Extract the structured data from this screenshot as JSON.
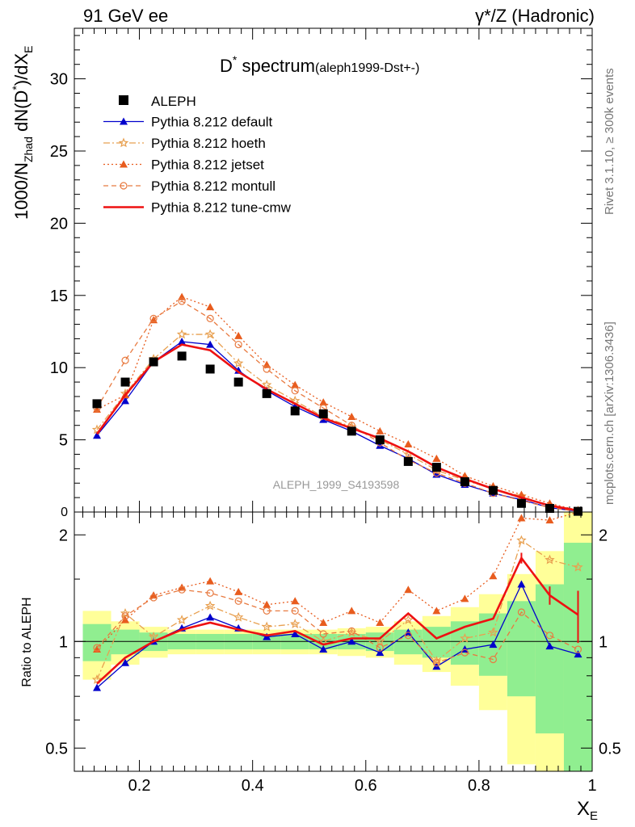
{
  "header": {
    "left": "91 GeV ee",
    "right": "γ*/Z (Hadronic)"
  },
  "side": {
    "rivet": "Rivet 3.1.10, ≥ 300k events",
    "mcplots": "mcplots.cern.ch [arXiv:1306.3436]"
  },
  "colors": {
    "data": "#000000",
    "default": "#0000cc",
    "hoeth": "#e8a050",
    "jetset": "#e85c1e",
    "montull": "#e87a40",
    "tunecmw": "#ee1111",
    "band_inner": "#90ee90",
    "band_outer": "#ffff99"
  },
  "chart_data": {
    "type": "line",
    "title_main": "D",
    "title_sup": "*",
    "title_word": " spectrum",
    "title_sub": "(aleph1999-Dst+-)",
    "analysis_label": "ALEPH_1999_S4193598",
    "xlabel_main": "X",
    "xlabel_sub": "E",
    "ylabel": {
      "a": "1000/N",
      "a_sub": "Zhad",
      "b": " dN(D",
      "b_sup": "*",
      "c": ")/dX",
      "c_sub": "E"
    },
    "ratio_ylabel": "Ratio to ALEPH",
    "xlim": [
      0.085,
      1.0
    ],
    "ylim": [
      0,
      33.5
    ],
    "ratio_ylim": [
      0.43,
      2.32
    ],
    "x_ticks": [
      "0.2",
      "0.4",
      "0.6",
      "0.8",
      "1"
    ],
    "y_ticks": [
      "5",
      "10",
      "15",
      "20",
      "25",
      "30"
    ],
    "ratio_ticks": [
      "0.5",
      "1",
      "2"
    ],
    "x": [
      0.125,
      0.175,
      0.225,
      0.275,
      0.325,
      0.375,
      0.425,
      0.475,
      0.525,
      0.575,
      0.625,
      0.675,
      0.725,
      0.775,
      0.825,
      0.875,
      0.925,
      0.975
    ],
    "data": {
      "name": "ALEPH",
      "values": [
        7.5,
        9.0,
        10.4,
        10.8,
        9.9,
        9.0,
        8.2,
        7.0,
        6.8,
        5.6,
        5.0,
        3.5,
        3.1,
        2.1,
        1.5,
        0.6,
        0.25,
        0.05
      ]
    },
    "series": [
      {
        "key": "default",
        "name": "Pythia 8.212 default",
        "style": "solid",
        "marker": "triangle",
        "values": [
          5.3,
          7.7,
          10.4,
          11.8,
          11.6,
          9.8,
          8.4,
          7.3,
          6.4,
          5.6,
          4.6,
          3.7,
          2.6,
          1.9,
          1.3,
          0.85,
          0.3,
          0.05
        ],
        "ratio": [
          0.74,
          0.87,
          1.0,
          1.09,
          1.17,
          1.09,
          1.03,
          1.05,
          0.95,
          1.0,
          0.93,
          1.06,
          0.85,
          0.95,
          0.98,
          1.45,
          0.97,
          0.92
        ]
      },
      {
        "key": "hoeth",
        "name": "Pythia 8.212 hoeth",
        "style": "dashdot",
        "marker": "star",
        "values": [
          5.7,
          8.2,
          10.6,
          12.3,
          12.3,
          10.3,
          8.8,
          7.7,
          6.6,
          5.9,
          5.0,
          4.0,
          2.9,
          2.2,
          1.6,
          1.1,
          0.4,
          0.08
        ],
        "ratio": [
          0.78,
          1.2,
          1.03,
          1.15,
          1.26,
          1.17,
          1.1,
          1.12,
          1.0,
          1.06,
          1.0,
          1.15,
          0.88,
          1.02,
          1.06,
          1.93,
          1.7,
          1.62
        ]
      },
      {
        "key": "jetset",
        "name": "Pythia 8.212 jetset",
        "style": "dotted",
        "marker": "triangle",
        "values": [
          7.1,
          8.1,
          13.3,
          14.9,
          14.2,
          12.2,
          10.2,
          8.8,
          7.6,
          6.6,
          5.6,
          4.7,
          3.7,
          2.5,
          1.8,
          1.2,
          0.6,
          0.12
        ],
        "ratio": [
          0.95,
          1.15,
          1.35,
          1.42,
          1.48,
          1.38,
          1.27,
          1.3,
          1.13,
          1.22,
          1.13,
          1.4,
          1.22,
          1.32,
          1.53,
          2.23,
          2.2,
          2.34
        ]
      },
      {
        "key": "montull",
        "name": "Pythia 8.212 montull",
        "style": "dashed",
        "marker": "circle",
        "values": [
          7.2,
          10.5,
          13.4,
          14.6,
          13.4,
          11.6,
          9.9,
          8.4,
          7.2,
          6.0,
          4.8,
          3.6,
          2.7,
          2.0,
          1.3,
          0.8,
          0.3,
          0.05
        ],
        "ratio": [
          0.96,
          1.18,
          1.33,
          1.4,
          1.37,
          1.3,
          1.22,
          1.22,
          1.05,
          1.07,
          0.96,
          1.04,
          0.87,
          0.93,
          0.89,
          1.21,
          1.04,
          0.95
        ]
      },
      {
        "key": "tunecmw",
        "name": "Pythia 8.212 tune-cmw",
        "style": "solid-thick",
        "marker": "none",
        "values": [
          5.4,
          8.1,
          10.4,
          11.6,
          11.2,
          9.7,
          8.5,
          7.5,
          6.5,
          5.8,
          5.1,
          4.2,
          3.1,
          2.3,
          1.6,
          1.0,
          0.45,
          0.1
        ],
        "ratio": [
          0.76,
          0.9,
          1.0,
          1.08,
          1.13,
          1.08,
          1.04,
          1.07,
          0.98,
          1.02,
          1.02,
          1.2,
          1.02,
          1.1,
          1.16,
          1.72,
          1.35,
          1.19
        ]
      }
    ],
    "ratio_band_inner": [
      0.12,
      0.08,
      0.06,
      0.05,
      0.05,
      0.05,
      0.05,
      0.05,
      0.05,
      0.05,
      0.06,
      0.08,
      0.1,
      0.14,
      0.2,
      0.3,
      0.45,
      0.9
    ],
    "ratio_band_outer": [
      0.22,
      0.14,
      0.1,
      0.08,
      0.08,
      0.08,
      0.08,
      0.08,
      0.08,
      0.09,
      0.1,
      0.14,
      0.18,
      0.25,
      0.36,
      0.55,
      0.8,
      1.6
    ]
  }
}
